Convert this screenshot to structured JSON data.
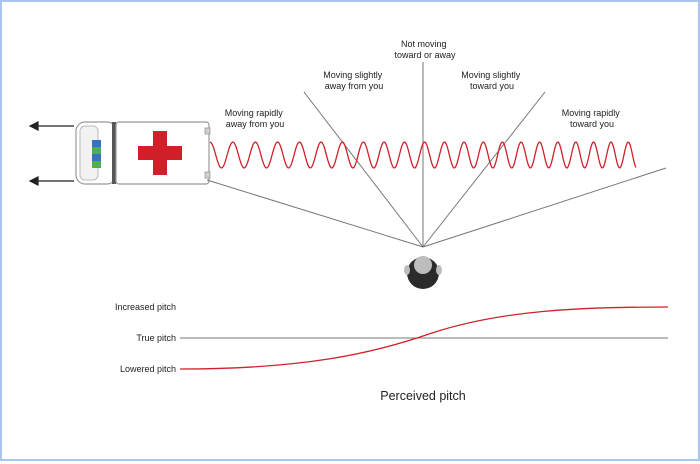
{
  "labels": {
    "moving_rapidly_away": [
      "Moving rapidly",
      "away from you"
    ],
    "moving_slightly_away": [
      "Moving slightly",
      "away from you"
    ],
    "not_moving": [
      "Not moving",
      "toward or away"
    ],
    "moving_slightly_toward": [
      "Moving slightly",
      "toward you"
    ],
    "moving_rapidly_toward": [
      "Moving rapidly",
      "toward you"
    ]
  },
  "graph": {
    "increased": "Increased pitch",
    "true": "True pitch",
    "lowered": "Lowered pitch",
    "caption": "Perceived pitch"
  },
  "colors": {
    "wave": "#d1202a",
    "cross": "#d1202a",
    "lines": "#777777",
    "frame": "#a9c6ea",
    "stripe_blue": "#3a6fc4",
    "stripe_green": "#4caf50"
  },
  "icons": [
    "ambulance-icon",
    "listener-head-icon",
    "arrow-left-icon"
  ]
}
